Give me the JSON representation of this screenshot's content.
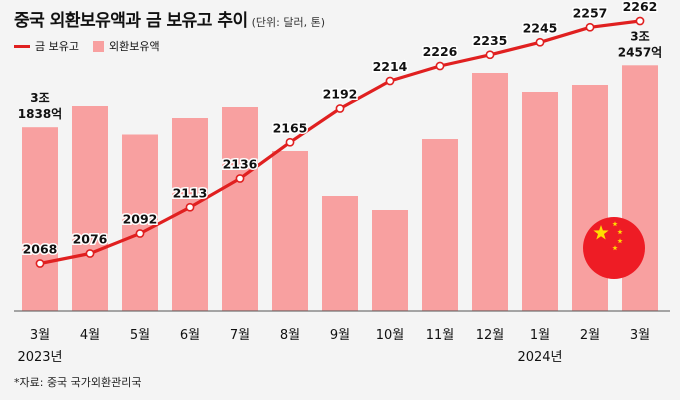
{
  "title": "중국 외환보유액과 금 보유고 추이",
  "unit": "(단위: 달러, 톤)",
  "legend": {
    "line_label": "금 보유고",
    "bar_label": "외환보유액"
  },
  "source": "*자료: 중국 국가외환관리국",
  "colors": {
    "bar": "#f8a0a0",
    "line": "#e02020",
    "background": "#f4f4f4",
    "flag_red": "#ee1c25",
    "flag_star": "#ffde00"
  },
  "flag_icon": "china-flag-icon",
  "chart_data": {
    "type": "bar",
    "categories": [
      "3월\n2023년",
      "4월",
      "5월",
      "6월",
      "7월",
      "8월",
      "9월",
      "10월",
      "11월",
      "12월",
      "1월\n2024년",
      "2월",
      "3월"
    ],
    "series": [
      {
        "name": "외환보유액",
        "type": "bar",
        "values": [
          31838,
          32050,
          31765,
          31930,
          32040,
          31600,
          31150,
          31010,
          31720,
          32380,
          32190,
          32260,
          32457
        ]
      },
      {
        "name": "금 보유고",
        "type": "line",
        "values": [
          2068,
          2076,
          2092,
          2113,
          2136,
          2165,
          2192,
          2214,
          2226,
          2235,
          2245,
          2257,
          2262
        ]
      }
    ],
    "bar_annotations": [
      {
        "index": 0,
        "top": "3조",
        "bottom": "1838억"
      },
      {
        "index": 12,
        "top": "3조",
        "bottom": "2457억"
      }
    ]
  }
}
